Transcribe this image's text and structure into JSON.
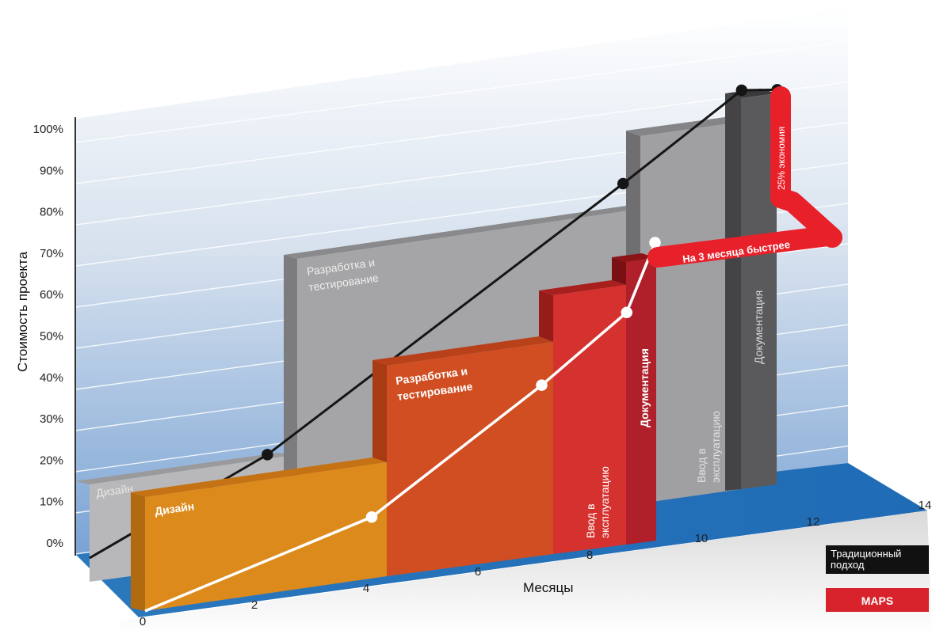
{
  "chart_data": {
    "type": "area",
    "title": "",
    "xlabel": "Месяцы",
    "ylabel": "Стоимость проекта",
    "y_ticks": [
      "0%",
      "10%",
      "20%",
      "30%",
      "40%",
      "50%",
      "60%",
      "70%",
      "80%",
      "90%",
      "100%"
    ],
    "x_ticks": [
      "0",
      "2",
      "4",
      "6",
      "8",
      "10",
      "12",
      "14"
    ],
    "xlim": [
      0,
      14
    ],
    "ylim": [
      0,
      100
    ],
    "series": [
      {
        "name": "Традиционный подход",
        "color": "#7c7c7e",
        "line_color": "#151515",
        "points": [
          [
            0,
            0
          ],
          [
            3,
            22
          ],
          [
            9,
            80
          ],
          [
            11,
            100
          ],
          [
            11.6,
            100
          ]
        ],
        "phases": [
          {
            "label": "Дизайн",
            "x_start": 0,
            "x_end": 3,
            "height": 18
          },
          {
            "label": "Разработка и тестирование",
            "x_start": 3,
            "x_end": 9,
            "height": 62
          },
          {
            "label": "Ввод в эксплуатацию",
            "x_start": 9,
            "x_end": 11,
            "height": 80
          },
          {
            "label": "Документация",
            "x_start": 11,
            "x_end": 11.6,
            "height": 100
          }
        ]
      },
      {
        "name": "MAPS",
        "color": "#d8343a",
        "line_color": "#ffffff",
        "points": [
          [
            0,
            0
          ],
          [
            4,
            18
          ],
          [
            7,
            45
          ],
          [
            8.5,
            60
          ],
          [
            9,
            75
          ]
        ],
        "phases": [
          {
            "label": "Дизайн",
            "x_start": 0,
            "x_end": 4,
            "height": 18
          },
          {
            "label": "Разработка и тестирование",
            "x_start": 4,
            "x_end": 7,
            "height": 45
          },
          {
            "label": "Ввод в эксплуатацию",
            "x_start": 7,
            "x_end": 8.5,
            "height": 60
          },
          {
            "label": "Документация",
            "x_start": 8.5,
            "x_end": 9,
            "height": 68
          }
        ]
      }
    ],
    "annotations": {
      "faster": "На 3 месяца быстрее",
      "savings": "25% экономия"
    },
    "legend": {
      "position": "bottom-right",
      "traditional": "Традиционный подход",
      "maps": "MAPS"
    }
  }
}
